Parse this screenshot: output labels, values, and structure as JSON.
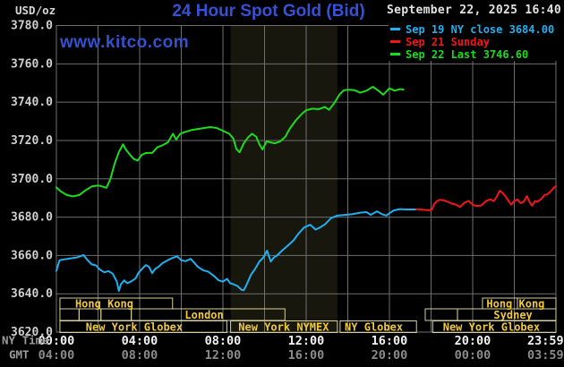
{
  "header": {
    "units_label": "USD/oz",
    "title": "24 Hour Spot Gold (Bid)",
    "datetime": "September 22, 2025 16:40",
    "watermark": "www.kitco.com",
    "legend": [
      {
        "label": "Sep 19 NY close 3684.00",
        "color": "#1fb0f0"
      },
      {
        "label": "Sep 21 Sunday",
        "color": "#f21616"
      },
      {
        "label": "Sep 22 Last 3746.60",
        "color": "#1ddb1d"
      }
    ]
  },
  "axes": {
    "ny_caption": "NY Time",
    "gmt_caption": "GMT",
    "y_ticks": [
      {
        "v": 3780,
        "label": "3780.0"
      },
      {
        "v": 3760,
        "label": "3760.0"
      },
      {
        "v": 3740,
        "label": "3740.0"
      },
      {
        "v": 3720,
        "label": "3720.0"
      },
      {
        "v": 3700,
        "label": "3700.0"
      },
      {
        "v": 3680,
        "label": "3680.0"
      },
      {
        "v": 3660,
        "label": "3660.0"
      },
      {
        "v": 3640,
        "label": "3640.0"
      },
      {
        "v": 3620,
        "label": "3620.0"
      }
    ],
    "ny_ticks": [
      {
        "t": 0,
        "label": "00:00"
      },
      {
        "t": 4,
        "label": "04:00"
      },
      {
        "t": 8,
        "label": "08:00"
      },
      {
        "t": 12,
        "label": "12:00"
      },
      {
        "t": 16,
        "label": "16:00"
      },
      {
        "t": 20,
        "label": "20:00"
      },
      {
        "t": 23.5,
        "label": "23:59"
      }
    ],
    "gmt_ticks": [
      {
        "t": 0,
        "label": "04:00"
      },
      {
        "t": 4,
        "label": "08:00"
      },
      {
        "t": 8,
        "label": "12:00"
      },
      {
        "t": 12,
        "label": "16:00"
      },
      {
        "t": 16,
        "label": "20:00"
      },
      {
        "t": 20,
        "label": "00:00"
      },
      {
        "t": 23.5,
        "label": "03:59"
      }
    ]
  },
  "sessions": {
    "boxes": [
      {
        "row": 0,
        "t1": 0.17,
        "t2": 5.58
      },
      {
        "row": 0,
        "t1": 20.47,
        "t2": 22.15
      },
      {
        "row": 0,
        "t1": 22.15,
        "t2": 24
      },
      {
        "row": 1,
        "t1": 0.17,
        "t2": 1.09
      },
      {
        "row": 1,
        "t1": 1.09,
        "t2": 2.14
      },
      {
        "row": 1,
        "t1": 2.14,
        "t2": 3.6
      },
      {
        "row": 1,
        "t1": 3.6,
        "t2": 10.98
      },
      {
        "row": 1,
        "t1": 17.72,
        "t2": 19.27
      },
      {
        "row": 1,
        "t1": 19.27,
        "t2": 24
      },
      {
        "row": 2,
        "t1": 0.17,
        "t2": 8.19
      },
      {
        "row": 2,
        "t1": 8.37,
        "t2": 13.5
      },
      {
        "row": 2,
        "t1": 13.63,
        "t2": 17.3
      },
      {
        "row": 2,
        "t1": 18.08,
        "t2": 24
      }
    ],
    "labels": [
      {
        "row": 0,
        "t": 2.3,
        "text": "Hong Kong"
      },
      {
        "row": 0,
        "t": 22.06,
        "text": "Hong Kong"
      },
      {
        "row": 1,
        "t": 7.1,
        "text": "London"
      },
      {
        "row": 1,
        "t": 21.94,
        "text": "Sydney"
      },
      {
        "row": 2,
        "t": 3.74,
        "text": "New York Globex"
      },
      {
        "row": 2,
        "t": 10.92,
        "text": "New York NYMEX"
      },
      {
        "row": 2,
        "t": 15.25,
        "text": "NY Globex"
      },
      {
        "row": 2,
        "t": 20.9,
        "text": "New York Globex"
      }
    ]
  },
  "chart_data": {
    "type": "line",
    "title": "24 Hour Spot Gold (Bid)",
    "ylabel": "USD/oz",
    "ylim": [
      3620,
      3780
    ],
    "xlim_hours": [
      0,
      24
    ],
    "grid": {
      "v_step_hours": 2,
      "h_step_units": 20,
      "color": "#6e6e6e"
    },
    "nymex_band_hours": [
      8.37,
      13.5
    ],
    "band_color": "#17170d",
    "series": [
      {
        "name": "Sep 19 NY close 3684.00",
        "color": "#1fb0f0",
        "points": [
          [
            0,
            3652
          ],
          [
            0.15,
            3657.5
          ],
          [
            0.4,
            3658
          ],
          [
            0.7,
            3658.5
          ],
          [
            1,
            3659
          ],
          [
            1.3,
            3660.2
          ],
          [
            1.5,
            3657.5
          ],
          [
            1.7,
            3655.3
          ],
          [
            1.9,
            3654.8
          ],
          [
            2.1,
            3652.5
          ],
          [
            2.3,
            3651.2
          ],
          [
            2.5,
            3651.8
          ],
          [
            2.7,
            3650.5
          ],
          [
            2.9,
            3646.5
          ],
          [
            3,
            3641.5
          ],
          [
            3.1,
            3645
          ],
          [
            3.25,
            3647
          ],
          [
            3.4,
            3645.5
          ],
          [
            3.6,
            3646.5
          ],
          [
            3.8,
            3648
          ],
          [
            3.95,
            3651
          ],
          [
            4.15,
            3653.4
          ],
          [
            4.3,
            3655
          ],
          [
            4.45,
            3654
          ],
          [
            4.6,
            3650.8
          ],
          [
            4.75,
            3653
          ],
          [
            4.9,
            3654
          ],
          [
            5.1,
            3656
          ],
          [
            5.35,
            3657.5
          ],
          [
            5.6,
            3658.8
          ],
          [
            5.8,
            3659.5
          ],
          [
            6,
            3657.5
          ],
          [
            6.2,
            3657
          ],
          [
            6.45,
            3658.2
          ],
          [
            6.6,
            3656.5
          ],
          [
            6.8,
            3654
          ],
          [
            7.05,
            3652.3
          ],
          [
            7.3,
            3651.5
          ],
          [
            7.55,
            3649.5
          ],
          [
            7.8,
            3647
          ],
          [
            8,
            3646.3
          ],
          [
            8.2,
            3647.8
          ],
          [
            8.35,
            3645.5
          ],
          [
            8.5,
            3645
          ],
          [
            8.7,
            3644
          ],
          [
            8.9,
            3642
          ],
          [
            9,
            3641.8
          ],
          [
            9.15,
            3645
          ],
          [
            9.35,
            3650
          ],
          [
            9.55,
            3653
          ],
          [
            9.75,
            3656.8
          ],
          [
            9.95,
            3659
          ],
          [
            10.12,
            3662.5
          ],
          [
            10.3,
            3656.8
          ],
          [
            10.45,
            3659
          ],
          [
            10.6,
            3660
          ],
          [
            10.84,
            3662.5
          ],
          [
            11.1,
            3665
          ],
          [
            11.4,
            3668
          ],
          [
            11.6,
            3671
          ],
          [
            11.9,
            3674.6
          ],
          [
            12.2,
            3676
          ],
          [
            12.45,
            3673.5
          ],
          [
            12.65,
            3674.5
          ],
          [
            12.9,
            3676.2
          ],
          [
            13.2,
            3679.5
          ],
          [
            13.5,
            3680.8
          ],
          [
            13.9,
            3681.2
          ],
          [
            14.2,
            3681.5
          ],
          [
            14.6,
            3682.3
          ],
          [
            14.9,
            3682.6
          ],
          [
            15.1,
            3681.2
          ],
          [
            15.4,
            3683
          ],
          [
            15.65,
            3681.5
          ],
          [
            15.85,
            3680.8
          ],
          [
            16.2,
            3683.5
          ],
          [
            16.5,
            3684.2
          ],
          [
            16.8,
            3684
          ],
          [
            17.1,
            3684
          ],
          [
            17.25,
            3684
          ]
        ]
      },
      {
        "name": "Sep 21 Sunday",
        "color": "#f21616",
        "points": [
          [
            17.3,
            3684.2
          ],
          [
            17.6,
            3683.8
          ],
          [
            17.9,
            3683.6
          ],
          [
            18.05,
            3684
          ],
          [
            18.12,
            3686.3
          ],
          [
            18.25,
            3688
          ],
          [
            18.4,
            3689
          ],
          [
            18.6,
            3688.8
          ],
          [
            18.8,
            3688
          ],
          [
            19,
            3687
          ],
          [
            19.2,
            3686.5
          ],
          [
            19.4,
            3685.3
          ],
          [
            19.6,
            3687.5
          ],
          [
            19.8,
            3688.5
          ],
          [
            20,
            3686.5
          ],
          [
            20.15,
            3685.8
          ],
          [
            20.4,
            3686
          ],
          [
            20.65,
            3688.5
          ],
          [
            20.85,
            3689.3
          ],
          [
            21,
            3688.3
          ],
          [
            21.15,
            3690.5
          ],
          [
            21.3,
            3693.8
          ],
          [
            21.45,
            3692.5
          ],
          [
            21.6,
            3690.5
          ],
          [
            21.75,
            3688
          ],
          [
            21.85,
            3686.5
          ],
          [
            22,
            3688.5
          ],
          [
            22.15,
            3689.2
          ],
          [
            22.3,
            3687.3
          ],
          [
            22.45,
            3688
          ],
          [
            22.6,
            3691
          ],
          [
            22.75,
            3687.5
          ],
          [
            22.85,
            3686
          ],
          [
            23,
            3688.5
          ],
          [
            23.1,
            3688
          ],
          [
            23.3,
            3689.5
          ],
          [
            23.45,
            3691.5
          ],
          [
            23.6,
            3692
          ],
          [
            23.75,
            3693.5
          ],
          [
            23.9,
            3695.3
          ],
          [
            24,
            3696.2
          ]
        ]
      },
      {
        "name": "Sep 22 Last 3746.60",
        "color": "#1ddb1d",
        "points": [
          [
            0,
            3695.5
          ],
          [
            0.2,
            3693.5
          ],
          [
            0.5,
            3691.5
          ],
          [
            0.8,
            3690.8
          ],
          [
            1.1,
            3691.5
          ],
          [
            1.4,
            3694
          ],
          [
            1.7,
            3696
          ],
          [
            2,
            3696.5
          ],
          [
            2.2,
            3696
          ],
          [
            2.4,
            3695.3
          ],
          [
            2.6,
            3700
          ],
          [
            2.8,
            3708
          ],
          [
            3,
            3714
          ],
          [
            3.2,
            3718
          ],
          [
            3.35,
            3715
          ],
          [
            3.5,
            3713
          ],
          [
            3.7,
            3710.5
          ],
          [
            3.9,
            3709.5
          ],
          [
            4.1,
            3712.5
          ],
          [
            4.3,
            3713.5
          ],
          [
            4.6,
            3713.5
          ],
          [
            4.85,
            3716.5
          ],
          [
            5.1,
            3717.5
          ],
          [
            5.35,
            3719
          ],
          [
            5.6,
            3723.5
          ],
          [
            5.75,
            3720.5
          ],
          [
            5.95,
            3723.5
          ],
          [
            6.2,
            3724.5
          ],
          [
            6.5,
            3725.5
          ],
          [
            6.8,
            3726
          ],
          [
            7.1,
            3726.5
          ],
          [
            7.4,
            3727
          ],
          [
            7.7,
            3726.5
          ],
          [
            8,
            3725
          ],
          [
            8.3,
            3723.5
          ],
          [
            8.5,
            3721
          ],
          [
            8.65,
            3715.5
          ],
          [
            8.8,
            3713.8
          ],
          [
            9,
            3718.5
          ],
          [
            9.2,
            3721.5
          ],
          [
            9.4,
            3723.5
          ],
          [
            9.6,
            3722
          ],
          [
            9.75,
            3718
          ],
          [
            9.9,
            3715.3
          ],
          [
            10.1,
            3719.5
          ],
          [
            10.3,
            3719
          ],
          [
            10.5,
            3718.5
          ],
          [
            10.75,
            3719.5
          ],
          [
            11,
            3722
          ],
          [
            11.2,
            3726
          ],
          [
            11.5,
            3730.5
          ],
          [
            11.8,
            3734
          ],
          [
            12,
            3735.8
          ],
          [
            12.3,
            3736.6
          ],
          [
            12.6,
            3736.3
          ],
          [
            12.9,
            3737.5
          ],
          [
            13.1,
            3736
          ],
          [
            13.35,
            3739.5
          ],
          [
            13.6,
            3744
          ],
          [
            13.8,
            3746.2
          ],
          [
            14,
            3746.5
          ],
          [
            14.3,
            3746.3
          ],
          [
            14.6,
            3744.9
          ],
          [
            14.9,
            3746
          ],
          [
            15.2,
            3748
          ],
          [
            15.45,
            3746.2
          ],
          [
            15.7,
            3743.9
          ],
          [
            16,
            3747.2
          ],
          [
            16.25,
            3746
          ],
          [
            16.5,
            3746.8
          ],
          [
            16.67,
            3746.6
          ]
        ]
      }
    ]
  },
  "colors": {
    "grid": "#6e6e6e",
    "session_border": "#d8d09a",
    "session_text": "#f0c93c",
    "y_tick_text": "#cfcfcf",
    "ny_tick_text": "#f2f2f2",
    "gmt_tick_text": "#8b8b8b",
    "axis_caption_text": "#9c9c9c"
  }
}
